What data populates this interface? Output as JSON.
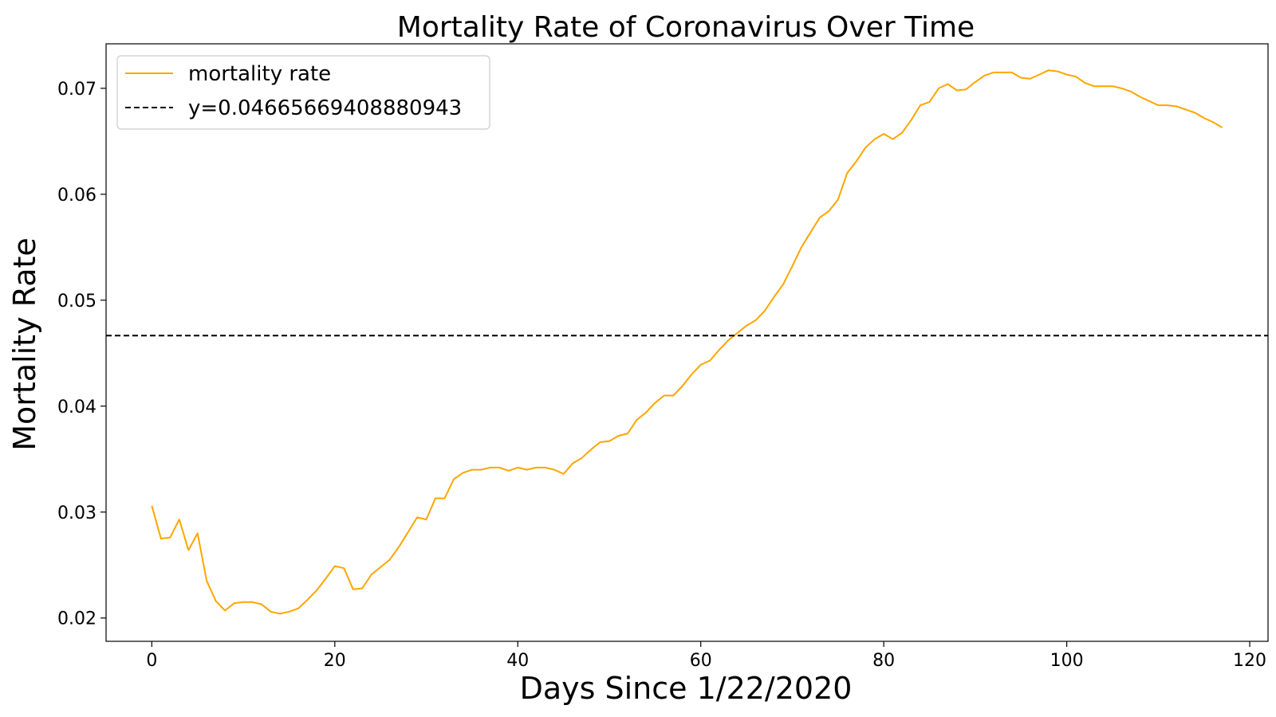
{
  "chart_data": {
    "type": "line",
    "title": "Mortality Rate of Coronavirus Over Time",
    "xlabel": "Days Since 1/22/2020",
    "ylabel": "Mortality Rate",
    "xlim": [
      -5,
      122
    ],
    "ylim": [
      0.0178,
      0.0742
    ],
    "xticks": [
      0,
      20,
      40,
      60,
      80,
      100,
      120
    ],
    "xtick_labels": [
      "0",
      "20",
      "40",
      "60",
      "80",
      "100",
      "120"
    ],
    "yticks": [
      0.02,
      0.03,
      0.04,
      0.05,
      0.06,
      0.07
    ],
    "ytick_labels": [
      "0.02",
      "0.03",
      "0.04",
      "0.05",
      "0.06",
      "0.07"
    ],
    "grid": false,
    "legend_position": "top-left",
    "series": [
      {
        "name": "mortality rate",
        "color": "#ffa500",
        "style": "solid",
        "x": [
          0,
          1,
          2,
          3,
          4,
          5,
          6,
          7,
          8,
          9,
          10,
          11,
          12,
          13,
          14,
          15,
          16,
          17,
          18,
          19,
          20,
          21,
          22,
          23,
          24,
          25,
          26,
          27,
          28,
          29,
          30,
          31,
          32,
          33,
          34,
          35,
          36,
          37,
          38,
          39,
          40,
          41,
          42,
          43,
          44,
          45,
          46,
          47,
          48,
          49,
          50,
          51,
          52,
          53,
          54,
          55,
          56,
          57,
          58,
          59,
          60,
          61,
          62,
          63,
          64,
          65,
          66,
          67,
          68,
          69,
          70,
          71,
          72,
          73,
          74,
          75,
          76,
          77,
          78,
          79,
          80,
          81,
          82,
          83,
          84,
          85,
          86,
          87,
          88,
          89,
          90,
          91,
          92,
          93,
          94,
          95,
          96,
          97,
          98,
          99,
          100,
          101,
          102,
          103,
          104,
          105,
          106,
          107,
          108,
          109,
          110,
          111,
          112,
          113,
          114,
          115,
          116,
          117
        ],
        "values": [
          0.0306,
          0.0275,
          0.0276,
          0.0293,
          0.0264,
          0.028,
          0.0235,
          0.0216,
          0.0207,
          0.0214,
          0.0215,
          0.0215,
          0.0213,
          0.0206,
          0.0204,
          0.0206,
          0.0209,
          0.0217,
          0.0226,
          0.0237,
          0.0249,
          0.0247,
          0.0227,
          0.0228,
          0.0241,
          0.0248,
          0.0255,
          0.0267,
          0.0281,
          0.0295,
          0.0293,
          0.0313,
          0.0313,
          0.0331,
          0.0337,
          0.034,
          0.034,
          0.0342,
          0.0342,
          0.0339,
          0.0342,
          0.034,
          0.0342,
          0.0342,
          0.034,
          0.0336,
          0.0346,
          0.0351,
          0.0359,
          0.0366,
          0.0367,
          0.0372,
          0.0374,
          0.0387,
          0.0394,
          0.0403,
          0.041,
          0.041,
          0.0419,
          0.043,
          0.0439,
          0.0443,
          0.0453,
          0.0462,
          0.0469,
          0.0476,
          0.0481,
          0.049,
          0.0503,
          0.0515,
          0.0532,
          0.055,
          0.0564,
          0.0578,
          0.0584,
          0.0595,
          0.062,
          0.0631,
          0.0644,
          0.0652,
          0.0657,
          0.0652,
          0.0658,
          0.067,
          0.0684,
          0.0687,
          0.07,
          0.0704,
          0.0698,
          0.0699,
          0.0706,
          0.0712,
          0.0715,
          0.0715,
          0.0715,
          0.071,
          0.0709,
          0.0713,
          0.0717,
          0.0716,
          0.0713,
          0.0711,
          0.0705,
          0.0702,
          0.0702,
          0.0702,
          0.07,
          0.0697,
          0.0692,
          0.0688,
          0.0684,
          0.0684,
          0.0683,
          0.068,
          0.0677,
          0.0672,
          0.0668,
          0.0663
        ]
      },
      {
        "name": "y=0.04665669408880943",
        "color": "#000000",
        "style": "dashed",
        "hline": 0.04665669408880943
      }
    ]
  }
}
